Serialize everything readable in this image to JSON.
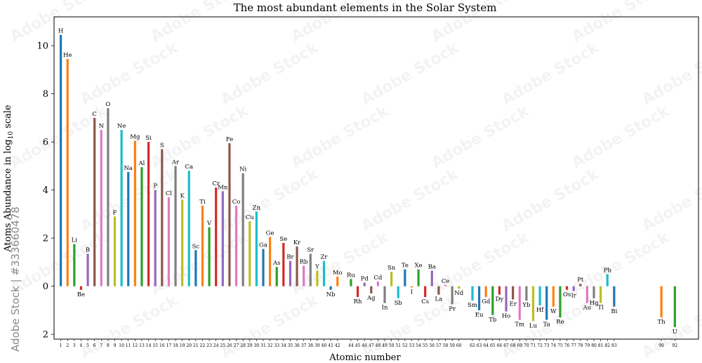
{
  "watermark": {
    "side_text": "Adobe Stock | #333660478",
    "tile_text": "Adobe Stock"
  },
  "colors": [
    "#1f77b4",
    "#ff7f0e",
    "#2ca02c",
    "#d62728",
    "#9467bd",
    "#8c564b",
    "#e377c2",
    "#7f7f7f",
    "#bcbd22",
    "#17becf"
  ],
  "chart_data": {
    "type": "bar",
    "title": "The most abundant elements in the Solar System",
    "xlabel": "Atomic number",
    "ylabel": "Atoms Abundance in log",
    "ylabel_sub": "10",
    "ylabel_tail": " scale",
    "xlim": [
      0,
      95.5
    ],
    "ylim": [
      -2.2,
      11.2
    ],
    "yticks": [
      -2,
      0,
      2,
      4,
      6,
      8,
      10
    ],
    "ytick_labels": [
      "2",
      "0",
      "2",
      "4",
      "6",
      "8",
      "10"
    ],
    "grid": false,
    "series": [
      {
        "z": 1,
        "symbol": "H",
        "value": 10.45
      },
      {
        "z": 2,
        "symbol": "He",
        "value": 9.45
      },
      {
        "z": 3,
        "symbol": "Li",
        "value": 1.75
      },
      {
        "z": 4,
        "symbol": "Be",
        "value": -0.15
      },
      {
        "z": 5,
        "symbol": "B",
        "value": 1.35
      },
      {
        "z": 6,
        "symbol": "C",
        "value": 7.0
      },
      {
        "z": 7,
        "symbol": "N",
        "value": 6.5
      },
      {
        "z": 8,
        "symbol": "O",
        "value": 7.4
      },
      {
        "z": 9,
        "symbol": "F",
        "value": 2.9
      },
      {
        "z": 10,
        "symbol": "Ne",
        "value": 6.5
      },
      {
        "z": 11,
        "symbol": "Na",
        "value": 4.75
      },
      {
        "z": 12,
        "symbol": "Mg",
        "value": 6.05
      },
      {
        "z": 13,
        "symbol": "Al",
        "value": 4.95
      },
      {
        "z": 14,
        "symbol": "Si",
        "value": 6.0
      },
      {
        "z": 15,
        "symbol": "P",
        "value": 4.0
      },
      {
        "z": 16,
        "symbol": "S",
        "value": 5.7
      },
      {
        "z": 17,
        "symbol": "Cl",
        "value": 3.7
      },
      {
        "z": 18,
        "symbol": "Ar",
        "value": 5.0
      },
      {
        "z": 19,
        "symbol": "K",
        "value": 3.6
      },
      {
        "z": 20,
        "symbol": "Ca",
        "value": 4.8
      },
      {
        "z": 21,
        "symbol": "Sc",
        "value": 1.5
      },
      {
        "z": 22,
        "symbol": "Ti",
        "value": 3.35
      },
      {
        "z": 23,
        "symbol": "V",
        "value": 2.45
      },
      {
        "z": 24,
        "symbol": "Cr",
        "value": 4.1
      },
      {
        "z": 25,
        "symbol": "Mn",
        "value": 3.95
      },
      {
        "z": 26,
        "symbol": "Fe",
        "value": 5.95
      },
      {
        "z": 27,
        "symbol": "Co",
        "value": 3.35
      },
      {
        "z": 28,
        "symbol": "Ni",
        "value": 4.7
      },
      {
        "z": 29,
        "symbol": "Cu",
        "value": 2.7
      },
      {
        "z": 30,
        "symbol": "Zn",
        "value": 3.1
      },
      {
        "z": 31,
        "symbol": "Ga",
        "value": 1.55
      },
      {
        "z": 32,
        "symbol": "Ge",
        "value": 2.05
      },
      {
        "z": 33,
        "symbol": "As",
        "value": 0.8
      },
      {
        "z": 34,
        "symbol": "Se",
        "value": 1.8
      },
      {
        "z": 35,
        "symbol": "Br",
        "value": 1.05
      },
      {
        "z": 36,
        "symbol": "Kr",
        "value": 1.65
      },
      {
        "z": 37,
        "symbol": "Rb",
        "value": 0.85
      },
      {
        "z": 38,
        "symbol": "Sr",
        "value": 1.35
      },
      {
        "z": 39,
        "symbol": "Y",
        "value": 0.65
      },
      {
        "z": 40,
        "symbol": "Zr",
        "value": 1.05
      },
      {
        "z": 41,
        "symbol": "Nb",
        "value": -0.15
      },
      {
        "z": 42,
        "symbol": "Mo",
        "value": 0.4
      },
      {
        "z": 44,
        "symbol": "Ru",
        "value": 0.3
      },
      {
        "z": 45,
        "symbol": "Rh",
        "value": -0.45
      },
      {
        "z": 46,
        "symbol": "Pd",
        "value": 0.15
      },
      {
        "z": 47,
        "symbol": "Ag",
        "value": -0.3
      },
      {
        "z": 48,
        "symbol": "Cd",
        "value": 0.2
      },
      {
        "z": 49,
        "symbol": "In",
        "value": -0.7
      },
      {
        "z": 50,
        "symbol": "Sn",
        "value": 0.6
      },
      {
        "z": 51,
        "symbol": "Sb",
        "value": -0.5
      },
      {
        "z": 52,
        "symbol": "Te",
        "value": 0.7
      },
      {
        "z": 53,
        "symbol": "I",
        "value": -0.05
      },
      {
        "z": 54,
        "symbol": "Xe",
        "value": 0.7
      },
      {
        "z": 55,
        "symbol": "Cs",
        "value": -0.45
      },
      {
        "z": 56,
        "symbol": "Ba",
        "value": 0.65
      },
      {
        "z": 57,
        "symbol": "La",
        "value": -0.35
      },
      {
        "z": 58,
        "symbol": "Ce",
        "value": 0.05
      },
      {
        "z": 59,
        "symbol": "Pr",
        "value": -0.75
      },
      {
        "z": 60,
        "symbol": "Nd",
        "value": -0.1
      },
      {
        "z": 62,
        "symbol": "Sm",
        "value": -0.6
      },
      {
        "z": 63,
        "symbol": "Eu",
        "value": -1.0
      },
      {
        "z": 64,
        "symbol": "Gd",
        "value": -0.45
      },
      {
        "z": 65,
        "symbol": "Tb",
        "value": -1.2
      },
      {
        "z": 66,
        "symbol": "Dy",
        "value": -0.35
      },
      {
        "z": 67,
        "symbol": "Ho",
        "value": -1.05
      },
      {
        "z": 68,
        "symbol": "Er",
        "value": -0.55
      },
      {
        "z": 69,
        "symbol": "Tm",
        "value": -1.4
      },
      {
        "z": 70,
        "symbol": "Yb",
        "value": -0.6
      },
      {
        "z": 71,
        "symbol": "Lu",
        "value": -1.45
      },
      {
        "z": 72,
        "symbol": "Hf",
        "value": -0.8
      },
      {
        "z": 73,
        "symbol": "Ta",
        "value": -1.4
      },
      {
        "z": 74,
        "symbol": "W",
        "value": -0.85
      },
      {
        "z": 75,
        "symbol": "Re",
        "value": -1.3
      },
      {
        "z": 76,
        "symbol": "Os",
        "value": -0.15
      },
      {
        "z": 77,
        "symbol": "Ir",
        "value": -0.2
      },
      {
        "z": 78,
        "symbol": "Pt",
        "value": 0.1
      },
      {
        "z": 79,
        "symbol": "Au",
        "value": -0.7
      },
      {
        "z": 80,
        "symbol": "Hg",
        "value": -0.5
      },
      {
        "z": 81,
        "symbol": "Tl",
        "value": -0.7
      },
      {
        "z": 82,
        "symbol": "Pb",
        "value": 0.5
      },
      {
        "z": 83,
        "symbol": "Bi",
        "value": -0.85
      },
      {
        "z": 90,
        "symbol": "Th",
        "value": -1.3
      },
      {
        "z": 92,
        "symbol": "U",
        "value": -1.7
      }
    ]
  }
}
